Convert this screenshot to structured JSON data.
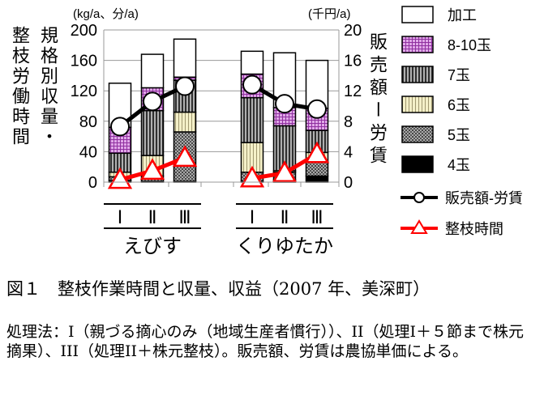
{
  "chart_data": {
    "type": "bar",
    "subtype": "stacked-bar-with-lines",
    "groups": [
      {
        "name": "えびす",
        "categories": [
          "Ⅰ",
          "Ⅱ",
          "Ⅲ"
        ]
      },
      {
        "name": "くりゆたか",
        "categories": [
          "Ⅰ",
          "Ⅱ",
          "Ⅲ"
        ]
      }
    ],
    "left_unit": "(kg/a、分/a)",
    "right_unit": "(千円/a)",
    "left_label": [
      "規格別収量・",
      "整枝労働時間"
    ],
    "right_label": "販売額ー労賃",
    "left_ticks": [
      "0",
      "40",
      "80",
      "120",
      "160",
      "200"
    ],
    "right_ticks": [
      "0",
      "4",
      "8",
      "12",
      "16",
      "20"
    ],
    "ylim": [
      0,
      200
    ],
    "ylim_right": [
      0,
      20
    ],
    "series": [
      {
        "name": "4玉",
        "color": "#000000",
        "values": [
          2,
          1,
          1,
          1,
          3,
          8
        ]
      },
      {
        "name": "5玉",
        "color": "#808080",
        "values": [
          5,
          7,
          65,
          12,
          10,
          19
        ]
      },
      {
        "name": "6玉",
        "color": "#f0ecc0",
        "values": [
          6,
          27,
          26,
          39,
          2,
          12
        ]
      },
      {
        "name": "7玉",
        "color": "#606060",
        "values": [
          25,
          59,
          42,
          59,
          59,
          29
        ]
      },
      {
        "name": "8-10玉",
        "color": "#b060c0",
        "values": [
          34,
          30,
          4,
          31,
          24,
          29
        ]
      },
      {
        "name": "加工",
        "color": "#ffffff",
        "values": [
          58,
          44,
          50,
          30,
          72,
          63
        ]
      }
    ],
    "lines": [
      {
        "name": "販売額-労賃",
        "axis": "right",
        "color": "#000000",
        "values": [
          7.3,
          10.6,
          12.6,
          12.8,
          10.3,
          9.6
        ]
      },
      {
        "name": "整枝時間",
        "axis": "left",
        "color": "#ff0000",
        "values": [
          3,
          15,
          32,
          5,
          12,
          37
        ]
      }
    ],
    "legend_placement": "right"
  },
  "caption": {
    "title": "図１　整枝作業時間と収量、収益（2007 年、美深町）",
    "note": "処理法：I（親づる摘心のみ（地域生産者慣行））、II（処理I＋５節まで株元摘果）、III（処理II＋株元整枝）。販売額、労賃は農協単価による。"
  }
}
